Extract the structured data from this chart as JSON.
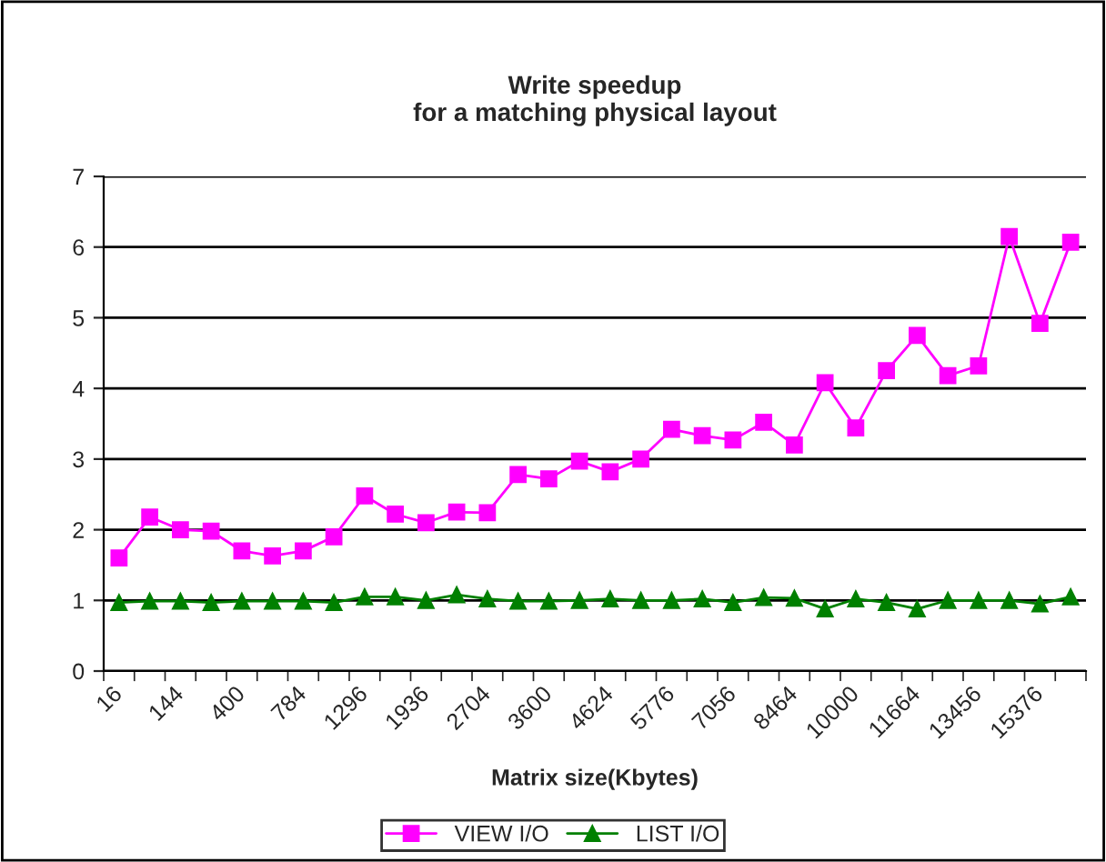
{
  "chart_data": {
    "type": "line",
    "title": "Write speedup\nfor a matching physical layout",
    "xlabel": "Matrix size(Kbytes)",
    "categories": [
      "16",
      null,
      "144",
      null,
      "400",
      null,
      "784",
      null,
      "1296",
      null,
      "1936",
      null,
      "2704",
      null,
      "3600",
      null,
      "4624",
      null,
      "5776",
      null,
      "7056",
      null,
      "8464",
      null,
      "10000",
      null,
      "11664",
      null,
      "13456",
      null,
      "15376",
      null
    ],
    "series": [
      {
        "name": "VIEW I/O",
        "color": "#ff00ff",
        "marker": "square",
        "values": [
          1.6,
          2.18,
          2.0,
          1.98,
          1.7,
          1.63,
          1.7,
          1.9,
          2.48,
          2.22,
          2.1,
          2.25,
          2.24,
          2.78,
          2.72,
          2.97,
          2.82,
          3.0,
          3.42,
          3.33,
          3.27,
          3.52,
          3.2,
          4.08,
          3.44,
          4.25,
          4.75,
          4.18,
          4.32,
          6.15,
          4.92,
          6.07
        ]
      },
      {
        "name": "LIST I/O",
        "color": "#008000",
        "marker": "triangle",
        "values": [
          0.97,
          0.99,
          0.99,
          0.97,
          0.99,
          0.99,
          0.99,
          0.97,
          1.05,
          1.05,
          1.0,
          1.08,
          1.02,
          0.99,
          0.99,
          1.0,
          1.02,
          1.0,
          1.0,
          1.02,
          0.97,
          1.04,
          1.03,
          0.88,
          1.02,
          0.97,
          0.88,
          1.0,
          1.0,
          1.0,
          0.95,
          1.05
        ]
      }
    ],
    "ylim": [
      0,
      7
    ],
    "yticks": [
      0,
      1,
      2,
      3,
      4,
      5,
      6,
      7
    ],
    "grid": "y",
    "legend": "bottom"
  }
}
